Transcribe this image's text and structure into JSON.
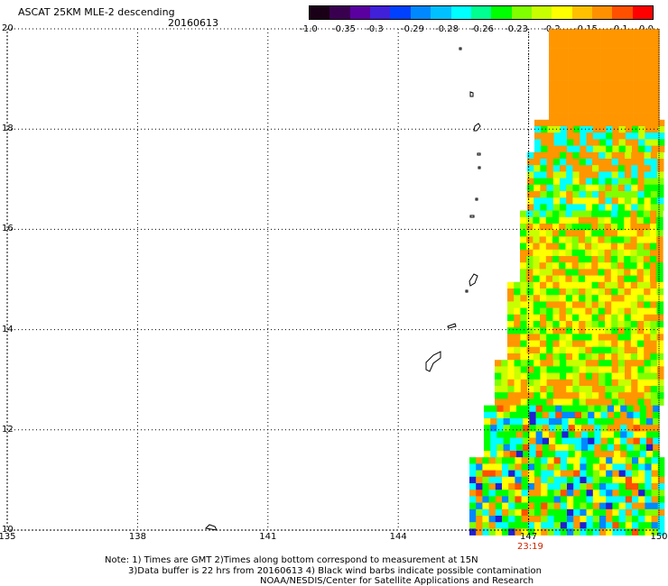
{
  "header": {
    "title": "ASCAT 25KM MLE-2 descending",
    "date": "20160613"
  },
  "colorbar": {
    "colors": [
      "#1a0016",
      "#3a0050",
      "#5a00a0",
      "#4020d8",
      "#0040ff",
      "#0088ff",
      "#00c0ff",
      "#00ffff",
      "#00ff90",
      "#00ff00",
      "#80ff00",
      "#c8ff00",
      "#ffff00",
      "#ffc000",
      "#ff9000",
      "#ff5000",
      "#ff0000"
    ],
    "labels": [
      "-1.0",
      "-0.35",
      "-0.3",
      "-0.29",
      "-0.28",
      "-0.26",
      "-0.23",
      "-0.2",
      "-0.15",
      "-0.1",
      "0.0"
    ]
  },
  "map": {
    "lon_ticks": [
      "135",
      "138",
      "141",
      "144",
      "147",
      "150"
    ],
    "lat_ticks": [
      "10",
      "12",
      "14",
      "16",
      "18",
      "20"
    ],
    "lon_range": [
      135,
      150
    ],
    "lat_range": [
      10,
      20
    ],
    "grid": true,
    "swath_time": "23:19"
  },
  "notes": [
    "Note: 1) Times are GMT 2)Times along bottom correspond to measurement at 15N",
    "3)Data buffer is 22 hrs from 20160613 4) Black wind barbs indicate possible contamination",
    "NOAA/NESDIS/Center for Satellite Applications and Research"
  ]
}
